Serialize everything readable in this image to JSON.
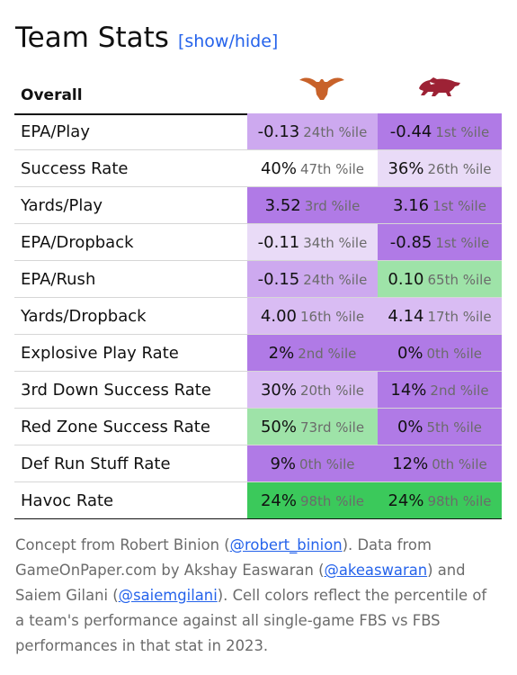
{
  "title": "Team Stats",
  "toggle": "[show/hide]",
  "header_label": "Overall",
  "teams": [
    {
      "logo_icon": "texas-longhorn-logo-icon",
      "color": "#c8622a"
    },
    {
      "logo_icon": "arkansas-razorback-logo-icon",
      "color": "#9d2235"
    }
  ],
  "colors": {
    "dark_purple": "#b07ae6",
    "mid_purple": "#cda9ef",
    "light_purple": "#e9dbf7",
    "white": "#ffffff",
    "light_green": "#9ee3a8",
    "green": "#3bc95b",
    "link": "#2563eb"
  },
  "rows": [
    {
      "stat": "EPA/Play",
      "a": {
        "num": "-0.13",
        "pct": "24th %ile",
        "bg": "#cda9ef"
      },
      "b": {
        "num": "-0.44",
        "pct": "1st %ile",
        "bg": "#b07ae6"
      }
    },
    {
      "stat": "Success Rate",
      "a": {
        "num": "40%",
        "pct": "47th %ile",
        "bg": "#ffffff"
      },
      "b": {
        "num": "36%",
        "pct": "26th %ile",
        "bg": "#e9dbf7"
      }
    },
    {
      "stat": "Yards/Play",
      "a": {
        "num": "3.52",
        "pct": "3rd %ile",
        "bg": "#b07ae6"
      },
      "b": {
        "num": "3.16",
        "pct": "1st %ile",
        "bg": "#b07ae6"
      }
    },
    {
      "stat": "EPA/Dropback",
      "a": {
        "num": "-0.11",
        "pct": "34th %ile",
        "bg": "#e9dbf7"
      },
      "b": {
        "num": "-0.85",
        "pct": "1st %ile",
        "bg": "#b07ae6"
      }
    },
    {
      "stat": "EPA/Rush",
      "a": {
        "num": "-0.15",
        "pct": "24th %ile",
        "bg": "#cda9ef"
      },
      "b": {
        "num": "0.10",
        "pct": "65th %ile",
        "bg": "#9ee3a8"
      }
    },
    {
      "stat": "Yards/Dropback",
      "a": {
        "num": "4.00",
        "pct": "16th %ile",
        "bg": "#d9bcf3"
      },
      "b": {
        "num": "4.14",
        "pct": "17th %ile",
        "bg": "#d9bcf3"
      }
    },
    {
      "stat": "Explosive Play Rate",
      "a": {
        "num": "2%",
        "pct": "2nd %ile",
        "bg": "#b07ae6"
      },
      "b": {
        "num": "0%",
        "pct": "0th %ile",
        "bg": "#b07ae6"
      }
    },
    {
      "stat": "3rd Down Success Rate",
      "a": {
        "num": "30%",
        "pct": "20th %ile",
        "bg": "#d9bcf3"
      },
      "b": {
        "num": "14%",
        "pct": "2nd %ile",
        "bg": "#b07ae6"
      }
    },
    {
      "stat": "Red Zone Success Rate",
      "a": {
        "num": "50%",
        "pct": "73rd %ile",
        "bg": "#9ee3a8"
      },
      "b": {
        "num": "0%",
        "pct": "5th %ile",
        "bg": "#b07ae6"
      }
    },
    {
      "stat": "Def Run Stuff Rate",
      "a": {
        "num": "9%",
        "pct": "0th %ile",
        "bg": "#b07ae6"
      },
      "b": {
        "num": "12%",
        "pct": "0th %ile",
        "bg": "#b07ae6"
      }
    },
    {
      "stat": "Havoc Rate",
      "a": {
        "num": "24%",
        "pct": "98th %ile",
        "bg": "#3bc95b"
      },
      "b": {
        "num": "24%",
        "pct": "98th %ile",
        "bg": "#3bc95b"
      }
    }
  ],
  "footer": {
    "t1": "Concept from Robert Binion (",
    "link1": "@robert_binion",
    "t2": "). Data from GameOnPaper.com by Akshay Easwaran (",
    "link2": "@akeaswaran",
    "t3": ") and Saiem Gilani (",
    "link3": "@saiemgilani",
    "t4": "). Cell colors reflect the percentile of a team's performance against all single-game FBS vs FBS performances in that stat in 2023."
  }
}
